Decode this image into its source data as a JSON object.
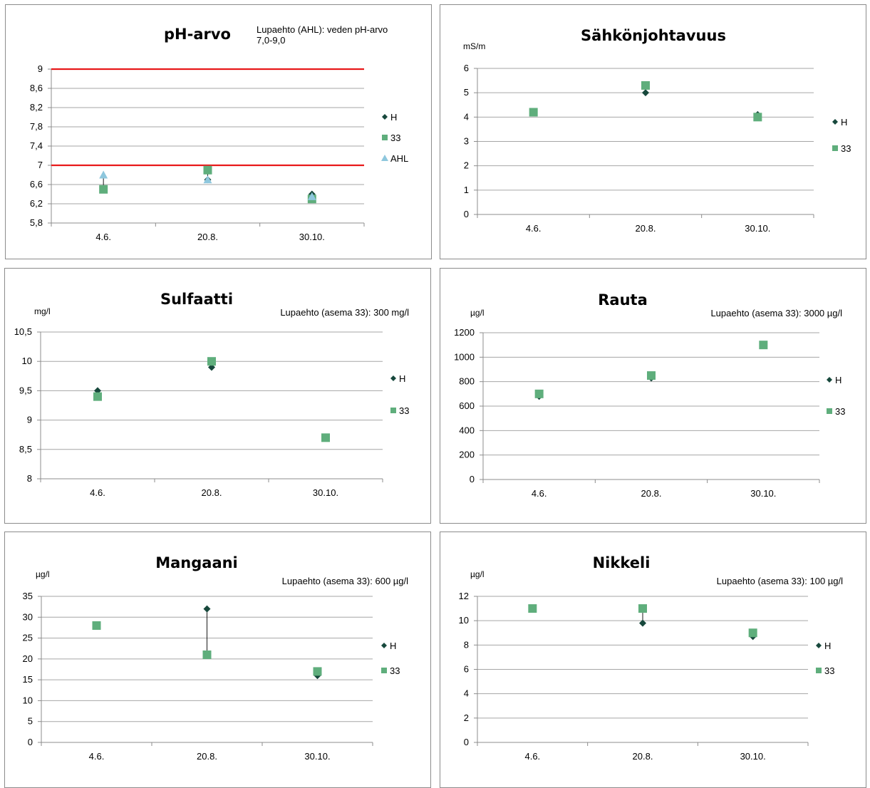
{
  "colors": {
    "H": "#17483c",
    "33": "#5fae7c",
    "AHL": "#8ec7dd",
    "limit_line": "#e8191a",
    "grid": "#a6a6a6",
    "axis": "#8c8c8c"
  },
  "charts": [
    {
      "id": "ph",
      "title": "pH-arvo",
      "note": "Lupaehto (AHL): veden pH-arvo 7,0-9,0",
      "unit": "",
      "chart_data": {
        "type": "scatter",
        "categories": [
          "4.6.",
          "20.8.",
          "30.10."
        ],
        "ylim": [
          5.8,
          9
        ],
        "yticks": [
          "5,8",
          "6,2",
          "6,6",
          "7",
          "7,4",
          "7,8",
          "8,2",
          "8,6",
          "9"
        ],
        "ytick_values": [
          5.8,
          6.2,
          6.6,
          7,
          7.4,
          7.8,
          8.2,
          8.6,
          9
        ],
        "series": [
          {
            "name": "H",
            "marker": "diamond",
            "values": [
              6.5,
              6.7,
              6.4
            ]
          },
          {
            "name": "33",
            "marker": "square",
            "values": [
              6.5,
              6.9,
              6.3
            ]
          },
          {
            "name": "AHL",
            "marker": "triangle",
            "values": [
              6.8,
              6.7,
              6.35
            ]
          }
        ],
        "limit_lines": [
          7,
          9
        ],
        "legend": "right"
      }
    },
    {
      "id": "sahko",
      "title": "Sähkönjohtavuus",
      "note": "",
      "unit": "mS/m",
      "chart_data": {
        "type": "scatter",
        "categories": [
          "4.6.",
          "20.8.",
          "30.10."
        ],
        "ylim": [
          0,
          6
        ],
        "yticks": [
          "0",
          "1",
          "2",
          "3",
          "4",
          "5",
          "6"
        ],
        "ytick_values": [
          0,
          1,
          2,
          3,
          4,
          5,
          6
        ],
        "series": [
          {
            "name": "H",
            "marker": "diamond",
            "values": [
              4.2,
              5.0,
              4.1
            ]
          },
          {
            "name": "33",
            "marker": "square",
            "values": [
              4.2,
              5.3,
              4.0
            ]
          }
        ],
        "legend": "right"
      }
    },
    {
      "id": "sulfaatti",
      "title": "Sulfaatti",
      "note": "Lupaehto (asema 33): 300 mg/l",
      "unit": "mg/l",
      "chart_data": {
        "type": "scatter",
        "categories": [
          "4.6.",
          "20.8.",
          "30.10."
        ],
        "ylim": [
          8,
          10.5
        ],
        "yticks": [
          "8",
          "8,5",
          "9",
          "9,5",
          "10",
          "10,5"
        ],
        "ytick_values": [
          8,
          8.5,
          9,
          9.5,
          10,
          10.5
        ],
        "series": [
          {
            "name": "H",
            "marker": "diamond",
            "values": [
              9.5,
              9.9,
              8.7
            ]
          },
          {
            "name": "33",
            "marker": "square",
            "values": [
              9.4,
              10.0,
              8.7
            ]
          }
        ],
        "legend": "right"
      }
    },
    {
      "id": "rauta",
      "title": "Rauta",
      "note": "Lupaehto (asema 33): 3000 µg/l",
      "unit": "µg/l",
      "chart_data": {
        "type": "scatter",
        "categories": [
          "4.6.",
          "20.8.",
          "30.10."
        ],
        "ylim": [
          0,
          1200
        ],
        "yticks": [
          "0",
          "200",
          "400",
          "600",
          "800",
          "1000",
          "1200"
        ],
        "ytick_values": [
          0,
          200,
          400,
          600,
          800,
          1000,
          1200
        ],
        "series": [
          {
            "name": "H",
            "marker": "diamond",
            "values": [
              680,
              830,
              1100
            ]
          },
          {
            "name": "33",
            "marker": "square",
            "values": [
              700,
              850,
              1100
            ]
          }
        ],
        "legend": "right"
      }
    },
    {
      "id": "mangaani",
      "title": "Mangaani",
      "note": "Lupaehto (asema 33): 600 µg/l",
      "unit": "µg/l",
      "chart_data": {
        "type": "scatter",
        "categories": [
          "4.6.",
          "20.8.",
          "30.10."
        ],
        "ylim": [
          0,
          35
        ],
        "yticks": [
          "0",
          "5",
          "10",
          "15",
          "20",
          "25",
          "30",
          "35"
        ],
        "ytick_values": [
          0,
          5,
          10,
          15,
          20,
          25,
          30,
          35
        ],
        "series": [
          {
            "name": "H",
            "marker": "diamond",
            "values": [
              28,
              32,
              16
            ]
          },
          {
            "name": "33",
            "marker": "square",
            "values": [
              28,
              21,
              17
            ]
          }
        ],
        "legend": "right"
      }
    },
    {
      "id": "nikkeli",
      "title": "Nikkeli",
      "note": "Lupaehto (asema 33): 100 µg/l",
      "unit": "µg/l",
      "chart_data": {
        "type": "scatter",
        "categories": [
          "4.6.",
          "20.8.",
          "30.10."
        ],
        "ylim": [
          0,
          12
        ],
        "yticks": [
          "0",
          "2",
          "4",
          "6",
          "8",
          "10",
          "12"
        ],
        "ytick_values": [
          0,
          2,
          4,
          6,
          8,
          10,
          12
        ],
        "series": [
          {
            "name": "H",
            "marker": "diamond",
            "values": [
              11,
              9.8,
              8.7
            ]
          },
          {
            "name": "33",
            "marker": "square",
            "values": [
              11,
              11,
              9
            ]
          }
        ],
        "legend": "right"
      }
    }
  ]
}
